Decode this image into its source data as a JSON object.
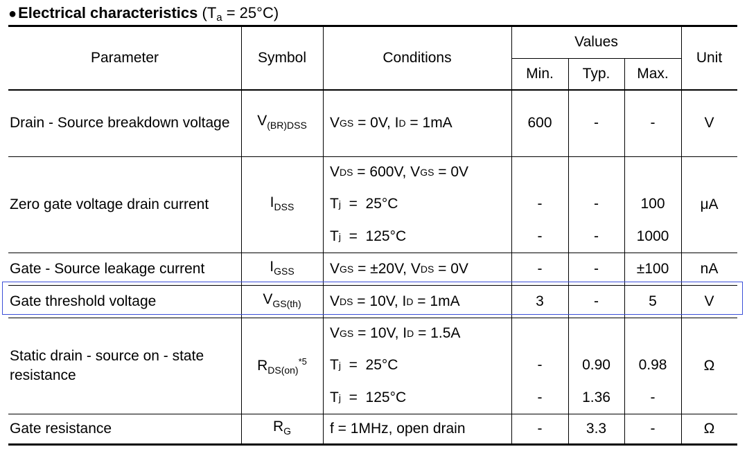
{
  "title": {
    "bullet": "●",
    "bold_text": "Electrical characteristics",
    "cond_prefix": "(T",
    "cond_sub": "a",
    "cond_suffix": " = 25°C)"
  },
  "header": {
    "parameter": "Parameter",
    "symbol": "Symbol",
    "conditions": "Conditions",
    "values": "Values",
    "min": "Min.",
    "typ": "Typ.",
    "max": "Max.",
    "unit": "Unit"
  },
  "rows": [
    {
      "parameter": "Drain - Source breakdown voltage",
      "symbol": {
        "main": "V",
        "sub": "(BR)DSS",
        "sup": ""
      },
      "conditions": [
        [
          {
            "t": "V"
          },
          {
            "s": "GS"
          },
          {
            "t": " = 0V, I"
          },
          {
            "s": "D"
          },
          {
            "t": " = 1mA"
          }
        ]
      ],
      "min": [
        "600"
      ],
      "typ": [
        "-"
      ],
      "max": [
        "-"
      ],
      "unit": "V"
    },
    {
      "parameter": "Zero gate voltage drain current",
      "symbol": {
        "main": "I",
        "sub": "DSS",
        "sup": ""
      },
      "conditions": [
        [
          {
            "t": "V"
          },
          {
            "s": "DS"
          },
          {
            "t": " = 600V, V"
          },
          {
            "s": "GS"
          },
          {
            "t": " = 0V"
          }
        ],
        [
          {
            "t": "T"
          },
          {
            "s": "j"
          },
          {
            "t": "  =  25°C"
          }
        ],
        [
          {
            "t": "T"
          },
          {
            "s": "j"
          },
          {
            "t": "  =  125°C"
          }
        ]
      ],
      "min": [
        "",
        "-",
        "-"
      ],
      "typ": [
        "",
        "-",
        "-"
      ],
      "max": [
        "",
        "100",
        "1000"
      ],
      "unit": "μA"
    },
    {
      "parameter": "Gate - Source leakage current",
      "symbol": {
        "main": "I",
        "sub": "GSS",
        "sup": ""
      },
      "conditions": [
        [
          {
            "t": "V"
          },
          {
            "s": "GS"
          },
          {
            "t": " = ±20V, V"
          },
          {
            "s": "DS"
          },
          {
            "t": " = 0V"
          }
        ]
      ],
      "min": [
        "-"
      ],
      "typ": [
        "-"
      ],
      "max": [
        "±100"
      ],
      "unit": "nA"
    },
    {
      "parameter": "Gate threshold voltage",
      "symbol": {
        "main": "V",
        "sub": "GS(th)",
        "sup": ""
      },
      "conditions": [
        [
          {
            "t": "V"
          },
          {
            "s": "DS"
          },
          {
            "t": " = 10V, I"
          },
          {
            "s": "D"
          },
          {
            "t": " = 1mA"
          }
        ]
      ],
      "min": [
        "3"
      ],
      "typ": [
        "-"
      ],
      "max": [
        "5"
      ],
      "unit": "V"
    },
    {
      "parameter": "Static drain - source on - state resistance",
      "symbol": {
        "main": "R",
        "sub": "DS(on)",
        "sup": "*5"
      },
      "conditions": [
        [
          {
            "t": "V"
          },
          {
            "s": "GS"
          },
          {
            "t": " = 10V, I"
          },
          {
            "s": "D"
          },
          {
            "t": " = 1.5A"
          }
        ],
        [
          {
            "t": "T"
          },
          {
            "s": "j"
          },
          {
            "t": "  =  25°C"
          }
        ],
        [
          {
            "t": "T"
          },
          {
            "s": "j"
          },
          {
            "t": "  =  125°C"
          }
        ]
      ],
      "min": [
        "",
        "-",
        "-"
      ],
      "typ": [
        "",
        "0.90",
        "1.36"
      ],
      "max": [
        "",
        "0.98",
        "-"
      ],
      "unit": "Ω"
    },
    {
      "parameter": "Gate resistance",
      "symbol": {
        "main": "R",
        "sub": "G",
        "sup": ""
      },
      "conditions": [
        [
          {
            "t": "f = 1MHz, open drain"
          }
        ]
      ],
      "min": [
        "-"
      ],
      "typ": [
        "3.3"
      ],
      "max": [
        "-"
      ],
      "unit": "Ω"
    }
  ]
}
